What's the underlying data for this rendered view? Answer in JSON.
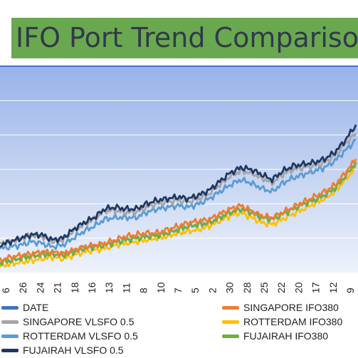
{
  "title": "IFO Port Trend Compariso",
  "colors": {
    "plot_top": "#98b3e8",
    "plot_bottom": "#eef2fb",
    "grid": "#ffffff",
    "border": "#4d6fd6",
    "title_bg": "#6aa84f"
  },
  "chart_data": {
    "type": "line",
    "title": "IFO Port Trend Compariso",
    "x_tick_labels": [
      "6",
      "26",
      "24",
      "21",
      "18",
      "16",
      "13",
      "11",
      "8",
      "10",
      "7",
      "5",
      "2",
      "30",
      "28",
      "25",
      "22",
      "20",
      "17",
      "12",
      "9"
    ],
    "ylim": [
      0,
      6
    ],
    "grid": true,
    "legend_position": "bottom",
    "series": [
      {
        "name": "DATE",
        "color": "#4472c4",
        "values": []
      },
      {
        "name": "SINGAPORE IFO380",
        "color": "#ed7d31",
        "values": [
          0.35,
          0.45,
          0.5,
          0.55,
          0.6,
          0.6,
          0.55,
          0.65,
          0.75,
          0.8,
          0.85,
          0.95,
          1.05,
          1.1,
          1.15,
          1.15,
          1.25,
          1.35,
          1.45,
          1.5,
          1.55,
          1.7,
          1.85,
          1.95,
          1.8,
          1.65,
          1.6,
          1.75,
          1.9,
          2.05,
          2.2,
          2.35,
          2.55,
          2.9,
          3.3
        ]
      },
      {
        "name": "SINGAPORE VLSFO 0.5",
        "color": "#a5a5a5",
        "values": [
          0.85,
          0.9,
          1.0,
          1.1,
          1.05,
          0.9,
          0.95,
          1.2,
          1.4,
          1.55,
          1.8,
          1.8,
          1.75,
          1.75,
          1.9,
          2.0,
          2.05,
          2.1,
          2.05,
          2.15,
          2.3,
          2.55,
          2.8,
          2.95,
          2.9,
          2.75,
          2.6,
          2.85,
          3.0,
          3.05,
          3.1,
          3.2,
          3.4,
          3.75,
          4.05
        ]
      },
      {
        "name": "ROTTERDAM IFO380",
        "color": "#ffc000",
        "values": [
          0.2,
          0.25,
          0.3,
          0.35,
          0.4,
          0.45,
          0.4,
          0.5,
          0.6,
          0.65,
          0.7,
          0.8,
          0.85,
          0.9,
          0.95,
          1.0,
          1.05,
          1.15,
          1.2,
          1.25,
          1.35,
          1.5,
          1.65,
          1.75,
          1.6,
          1.45,
          1.4,
          1.55,
          1.7,
          1.85,
          2.0,
          2.15,
          2.35,
          2.7,
          3.05
        ]
      },
      {
        "name": "ROTTERDAM VLSFO 0.5",
        "color": "#5b9bd5",
        "values": [
          0.7,
          0.75,
          0.8,
          0.9,
          0.85,
          0.75,
          0.8,
          1.0,
          1.2,
          1.35,
          1.55,
          1.6,
          1.6,
          1.6,
          1.75,
          1.85,
          1.9,
          1.95,
          1.9,
          2.0,
          2.15,
          2.35,
          2.55,
          2.7,
          2.6,
          2.45,
          2.35,
          2.6,
          2.75,
          2.85,
          2.95,
          3.05,
          3.25,
          3.55,
          3.85
        ]
      },
      {
        "name": "FUJAIRAH IFO380",
        "color": "#70ad47",
        "values": [
          0.3,
          0.35,
          0.42,
          0.48,
          0.52,
          0.55,
          0.5,
          0.6,
          0.7,
          0.75,
          0.8,
          0.88,
          0.95,
          1.0,
          1.05,
          1.08,
          1.15,
          1.25,
          1.35,
          1.4,
          1.45,
          1.6,
          1.75,
          1.85,
          1.75,
          1.6,
          1.55,
          1.7,
          1.85,
          2.0,
          2.1,
          2.25,
          2.45,
          2.8,
          3.2
        ]
      },
      {
        "name": "FUJAIRAH VLSFO 0.5",
        "color": "#1f3864",
        "values": [
          0.8,
          0.9,
          1.0,
          1.1,
          1.1,
          0.95,
          1.0,
          1.25,
          1.45,
          1.6,
          1.85,
          1.9,
          1.85,
          1.85,
          2.0,
          2.1,
          2.15,
          2.2,
          2.15,
          2.25,
          2.4,
          2.65,
          2.9,
          3.05,
          3.0,
          2.85,
          2.7,
          2.95,
          3.1,
          3.15,
          3.2,
          3.3,
          3.5,
          3.85,
          4.3
        ]
      }
    ]
  },
  "legend": {
    "items": [
      {
        "label": "DATE",
        "color": "#4472c4"
      },
      {
        "label": "SINGAPORE IFO380",
        "color": "#ed7d31"
      },
      {
        "label": "SINGAPORE VLSFO 0.5",
        "color": "#a5a5a5"
      },
      {
        "label": "ROTTERDAM IFO380",
        "color": "#ffc000"
      },
      {
        "label": "ROTTERDAM VLSFO 0.5",
        "color": "#5b9bd5"
      },
      {
        "label": "FUJAIRAH IFO380",
        "color": "#70ad47"
      },
      {
        "label": "FUJAIRAH VLSFO 0.5",
        "color": "#1f3864"
      }
    ]
  }
}
